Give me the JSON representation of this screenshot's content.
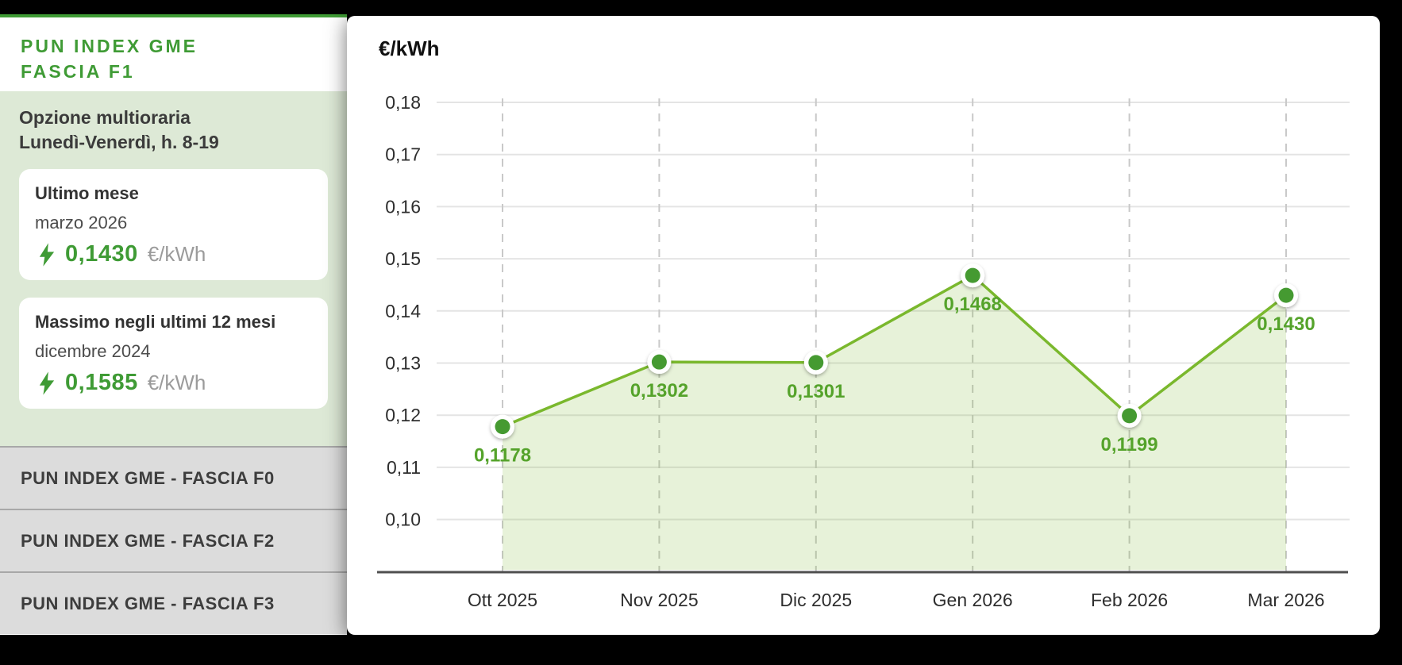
{
  "sidebar": {
    "title_lines": [
      "PUN INDEX GME",
      "FASCIA F1"
    ],
    "subtitle_lines": [
      "Opzione multioraria",
      "Lunedì-Venerdì, h. 8-19"
    ],
    "cards": [
      {
        "heading": "Ultimo mese",
        "period": "marzo 2026",
        "value": "0,1430",
        "unit": "€/kWh"
      },
      {
        "heading": "Massimo negli ultimi 12 mesi",
        "period": "dicembre 2024",
        "value": "0,1585",
        "unit": "€/kWh"
      }
    ],
    "tabs": [
      {
        "label": "PUN INDEX GME - FASCIA F0"
      },
      {
        "label": "PUN INDEX GME - FASCIA F2"
      },
      {
        "label": "PUN INDEX GME - FASCIA F3"
      }
    ]
  },
  "chart": {
    "title": "€/kWh"
  },
  "chart_data": {
    "type": "area",
    "title": "€/kWh",
    "x": [
      "Ott 2025",
      "Nov 2025",
      "Dic 2025",
      "Gen 2026",
      "Feb 2026",
      "Mar 2026"
    ],
    "values": [
      0.1178,
      0.1302,
      0.1301,
      0.1468,
      0.1199,
      0.143
    ],
    "point_labels": [
      "0,1178",
      "0,1302",
      "0,1301",
      "0,1468",
      "0,1199",
      "0,1430"
    ],
    "ylabel": "€/kWh",
    "ylim": [
      0.1,
      0.18
    ],
    "y_tick_labels": [
      "0,18",
      "0,17",
      "0,16",
      "0,15",
      "0,14",
      "0,13",
      "0,12",
      "0,11",
      "0,10"
    ],
    "grid": {
      "horizontal": "solid",
      "vertical": "dashed"
    },
    "legend": "none"
  },
  "colors": {
    "accent_green": "#3f9b35",
    "line_green": "#7ab82d",
    "dot_green": "#459a31",
    "point_label_green": "#55a32b",
    "area_fill": "rgba(122,184,45,0.18)",
    "sidebar_light_green": "#dde9d6",
    "tab_gray": "#dcdcdc",
    "unit_gray": "#9b9b9b",
    "grid_line": "#e4e4e4",
    "grid_dash": "#c9c9c9",
    "axis_line": "#4f4f4f",
    "tick_text": "#2e2e2e"
  }
}
